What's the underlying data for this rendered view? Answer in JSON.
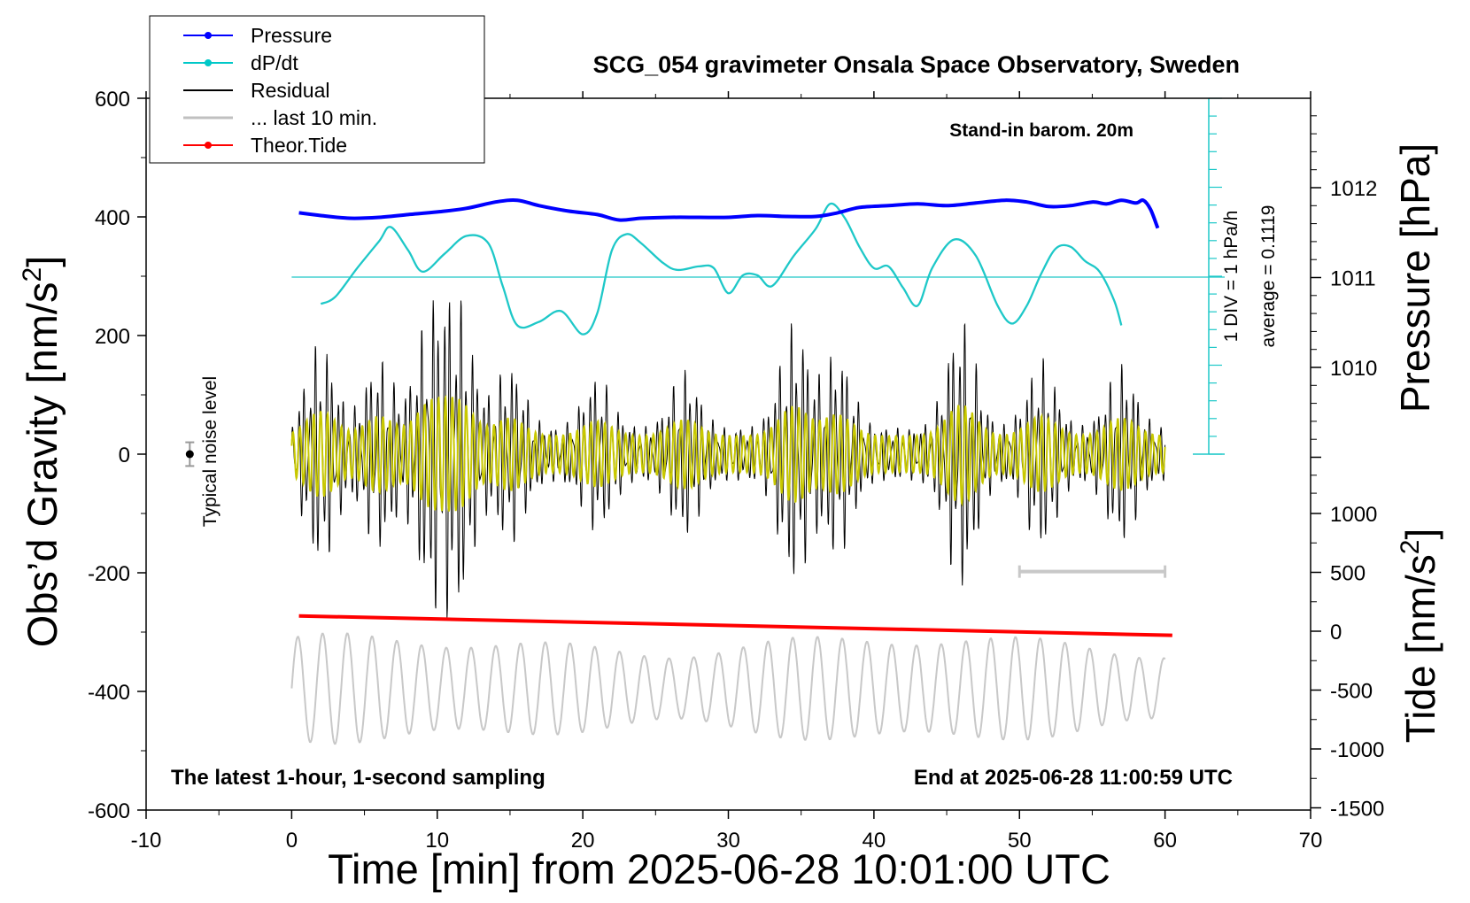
{
  "chart_data": {
    "type": "line",
    "title": "SCG_054 gravimeter Onsala Space Observatory, Sweden",
    "xlabel": "Time [min] from 2025-06-28 10:01:00 UTC",
    "ylabel_left": "Obs’d Gravity [nm/s",
    "ylabel_left_sup": "2",
    "ylabel_left_end": "]",
    "ylabel_right_pressure": "Pressure [hPa]",
    "ylabel_right_tide": "Tide [nm/s",
    "ylabel_right_tide_sup": "2",
    "ylabel_right_tide_end": "]",
    "xlim": [
      -10,
      70
    ],
    "ylim": [
      -600,
      600
    ],
    "pressure_lim": [
      1008.0,
      1013.8
    ],
    "tide_lim": [
      -1500,
      1000
    ],
    "x_ticks": [
      "-10",
      "0",
      "10",
      "20",
      "30",
      "40",
      "50",
      "60",
      "70"
    ],
    "y_ticks": [
      "600",
      "400",
      "200",
      "0",
      "-200",
      "-400",
      "-600"
    ],
    "pressure_ticks": [
      "1012",
      "1011",
      "1010"
    ],
    "tide_ticks": [
      "1000",
      "500",
      "0",
      "-500",
      "-1000",
      "-1500"
    ],
    "annotations": {
      "barom": "Stand-in barom. 20m",
      "left_bottom": "The latest 1-hour, 1-second sampling",
      "right_bottom": "End at 2025-06-28 11:00:59 UTC",
      "noise": "Typical noise level",
      "div": "1 DIV = 1 hPa/h",
      "average": "average = 0.1119"
    },
    "legend": [
      {
        "label": "Pressure",
        "color": "#0000ff",
        "marker": true
      },
      {
        "label": "dP/dt",
        "color": "#00c8c8",
        "marker": true
      },
      {
        "label": "Residual",
        "color": "#000000",
        "marker": false
      },
      {
        "label": "... last 10 min.",
        "color": "#c0c0c0",
        "marker": false
      },
      {
        "label": "Theor.Tide",
        "color": "#ff0000",
        "marker": true
      }
    ],
    "colors": {
      "pressure": "#0000ff",
      "dpdt": "#1ec8c8",
      "residual": "#000000",
      "last10": "#c8c8c8",
      "tide": "#ff0000",
      "yellow": "#c8c800"
    },
    "series": [
      {
        "name": "Pressure",
        "axis": "pressure_hPa",
        "x": [
          0.5,
          2,
          4,
          6,
          8,
          10,
          12,
          14,
          15.5,
          17,
          19,
          21,
          22.5,
          24,
          26,
          28,
          30,
          32,
          34,
          36,
          37.5,
          39,
          41,
          43,
          45,
          47,
          49,
          50.5,
          52,
          53.5,
          55,
          56,
          57,
          58,
          58.5,
          59,
          59.5
        ],
        "y": [
          1011.72,
          1011.69,
          1011.66,
          1011.67,
          1011.7,
          1011.73,
          1011.77,
          1011.84,
          1011.86,
          1011.8,
          1011.74,
          1011.7,
          1011.64,
          1011.66,
          1011.67,
          1011.67,
          1011.67,
          1011.69,
          1011.68,
          1011.68,
          1011.72,
          1011.78,
          1011.8,
          1011.82,
          1011.8,
          1011.83,
          1011.86,
          1011.84,
          1011.79,
          1011.8,
          1011.84,
          1011.82,
          1011.86,
          1011.83,
          1011.86,
          1011.76,
          1011.55
        ]
      },
      {
        "name": "dP/dt",
        "axis": "dpdt_hPa_per_h",
        "average": 0.1119,
        "x": [
          2,
          3,
          4.5,
          6,
          6.8,
          8,
          9,
          10.5,
          12,
          13.5,
          14.5,
          15.5,
          17,
          18.5,
          20,
          21,
          22,
          23,
          24,
          25.5,
          26.5,
          28,
          29,
          30,
          31,
          32,
          33,
          34.5,
          36,
          37,
          38,
          39,
          40,
          41,
          42,
          43,
          44,
          45.5,
          47,
          48.5,
          49.5,
          50.5,
          51.5,
          52.5,
          53.5,
          54.5,
          55.5,
          56.5,
          57
        ],
        "y": [
          -1.5,
          -1.1,
          0.5,
          2.0,
          2.8,
          1.5,
          0.3,
          1.3,
          2.3,
          1.9,
          -0.5,
          -2.7,
          -2.5,
          -1.9,
          -3.2,
          -2.0,
          1.5,
          2.4,
          1.9,
          0.8,
          0.4,
          0.6,
          0.5,
          -0.9,
          0.1,
          0.1,
          -0.5,
          1.2,
          2.7,
          4.1,
          3.3,
          1.7,
          0.5,
          0.6,
          -0.6,
          -1.6,
          0.5,
          2.1,
          1.2,
          -1.6,
          -2.6,
          -1.6,
          0.2,
          1.6,
          1.7,
          0.9,
          0.3,
          -1.3,
          -2.7
        ]
      },
      {
        "name": "Theor.Tide",
        "axis": "tide_nm_s2",
        "x": [
          0.5,
          60.5
        ],
        "y": [
          130,
          -35
        ]
      }
    ],
    "noise_bar": {
      "x": -7,
      "y": 0,
      "err": 20
    },
    "last10_marker": {
      "x_start": 50,
      "x_end": 60,
      "y": -198
    }
  }
}
